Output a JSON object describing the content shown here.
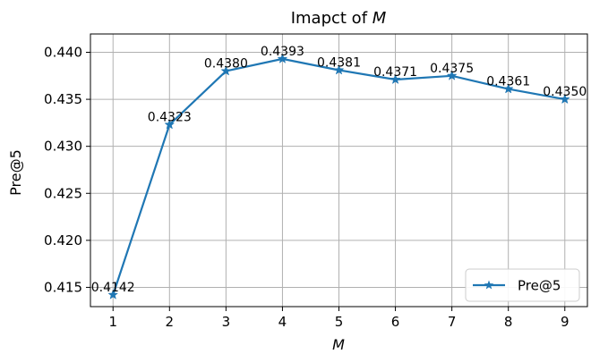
{
  "chart_data": {
    "type": "line",
    "title_prefix": "Imapct of ",
    "title_var": "M",
    "xlabel": "M",
    "ylabel": "Pre@5",
    "x": [
      1,
      2,
      3,
      4,
      5,
      6,
      7,
      8,
      9
    ],
    "series": [
      {
        "name": "Pre@5",
        "values": [
          0.4142,
          0.4323,
          0.438,
          0.4393,
          0.4381,
          0.4371,
          0.4375,
          0.4361,
          0.435
        ],
        "value_labels": [
          "0.4142",
          "0.4323",
          "0.4380",
          "0.4393",
          "0.4381",
          "0.4371",
          "0.4375",
          "0.4361",
          "0.4350"
        ],
        "color": "#1f77b4",
        "marker": "star"
      }
    ],
    "xticks": [
      "1",
      "2",
      "3",
      "4",
      "5",
      "6",
      "7",
      "8",
      "9"
    ],
    "yticks": [
      0.415,
      0.42,
      0.425,
      0.43,
      0.435,
      0.44
    ],
    "ytick_labels": [
      "0.415",
      "0.420",
      "0.425",
      "0.430",
      "0.435",
      "0.440"
    ],
    "xlim": [
      0.6,
      9.4
    ],
    "ylim": [
      0.41295,
      0.44195
    ],
    "grid": true,
    "legend_position": "lower right",
    "grid_color": "#b0b0b0"
  }
}
